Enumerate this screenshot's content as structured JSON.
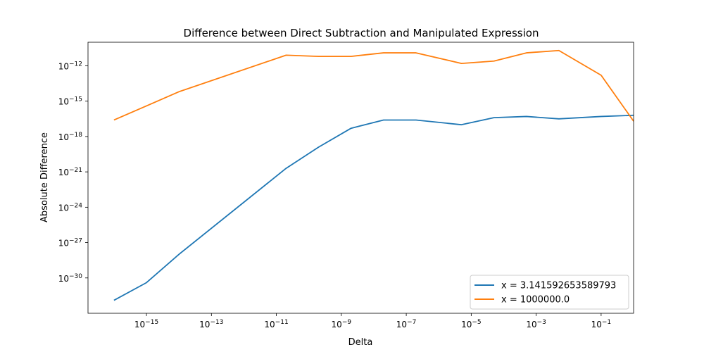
{
  "chart_data": {
    "type": "line",
    "title": "Difference between Direct Subtraction and Manipulated Expression",
    "xlabel": "Delta",
    "ylabel": "Absolute Difference",
    "xscale": "log",
    "yscale": "log",
    "xlim_exp": [
      -16.8,
      -0.0
    ],
    "ylim_exp": [
      -33.0,
      -10.0
    ],
    "x_ticks": [
      {
        "exp": -15,
        "label": "10",
        "sup": "−15"
      },
      {
        "exp": -13,
        "label": "10",
        "sup": "−13"
      },
      {
        "exp": -11,
        "label": "10",
        "sup": "−11"
      },
      {
        "exp": -9,
        "label": "10",
        "sup": "−9"
      },
      {
        "exp": -7,
        "label": "10",
        "sup": "−7"
      },
      {
        "exp": -5,
        "label": "10",
        "sup": "−5"
      },
      {
        "exp": -3,
        "label": "10",
        "sup": "−3"
      },
      {
        "exp": -1,
        "label": "10",
        "sup": "−1"
      }
    ],
    "y_ticks": [
      {
        "exp": -12,
        "label": "10",
        "sup": "−12"
      },
      {
        "exp": -15,
        "label": "10",
        "sup": "−15"
      },
      {
        "exp": -18,
        "label": "10",
        "sup": "−18"
      },
      {
        "exp": -21,
        "label": "10",
        "sup": "−21"
      },
      {
        "exp": -24,
        "label": "10",
        "sup": "−24"
      },
      {
        "exp": -27,
        "label": "10",
        "sup": "−27"
      },
      {
        "exp": -30,
        "label": "10",
        "sup": "−30"
      }
    ],
    "x_exponents": [
      -16,
      -15,
      -14,
      -10.7,
      -9.7,
      -8.7,
      -7.7,
      -6.7,
      -5.3,
      -4.3,
      -3.3,
      -2.3,
      -1,
      0
    ],
    "legend_position": "lower right",
    "grid": false,
    "series": [
      {
        "name": "x = 3.141592653589793",
        "color": "#1f77b4",
        "y_exponents": [
          -31.9,
          -30.4,
          -28.0,
          -20.7,
          -18.9,
          -17.3,
          -16.6,
          -16.6,
          -17.0,
          -16.4,
          -16.3,
          -16.5,
          -16.3,
          -16.2
        ]
      },
      {
        "name": "x = 1000000.0",
        "color": "#ff7f0e",
        "y_exponents": [
          -16.6,
          -15.4,
          -14.2,
          -11.1,
          -11.2,
          -11.2,
          -10.9,
          -10.9,
          -11.8,
          -11.6,
          -10.9,
          -10.7,
          -12.8,
          -16.7
        ]
      }
    ]
  }
}
